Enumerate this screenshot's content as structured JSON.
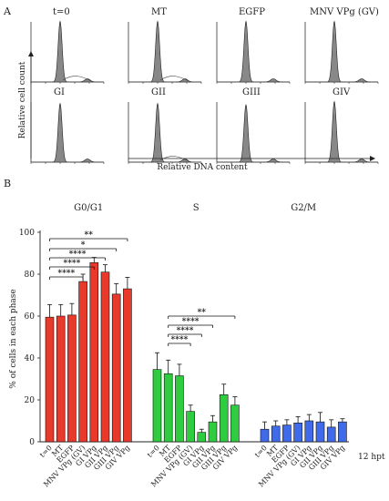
{
  "panel_a": {
    "label": "A",
    "titles": [
      "t=0",
      "MT",
      "EGFP",
      "MNV VPg (GV)",
      "GI",
      "GII",
      "GIII",
      "GIV"
    ],
    "ylabel": "Relative cell count",
    "xlabel": "Relative DNA content"
  },
  "panel_b": {
    "label": "B",
    "side_note": "12 hpt"
  },
  "chart_data": {
    "type": "bar",
    "ylabel": "% of cells in each phase",
    "ylim": [
      0,
      100
    ],
    "yticks": [
      0,
      20,
      40,
      60,
      80,
      100
    ],
    "categories": [
      "t=0",
      "MT",
      "EGFP",
      "MNV VPg (GV)",
      "GI VPg",
      "GII VPg",
      "GIII VPg",
      "GIV VPg"
    ],
    "groups": [
      {
        "name": "G0/G1",
        "color": "#e8392b",
        "values": [
          59.5,
          60,
          60.5,
          76.5,
          85.5,
          81,
          70.5,
          73
        ],
        "errors": [
          6,
          5.5,
          5.5,
          3.5,
          2.5,
          3.5,
          5,
          5.5
        ]
      },
      {
        "name": "S",
        "color": "#2ecc3e",
        "values": [
          34.5,
          32.5,
          31.5,
          14.5,
          4.5,
          9.5,
          22.5,
          17.5
        ],
        "errors": [
          8,
          6.5,
          5.5,
          3,
          1.5,
          3,
          5,
          4
        ]
      },
      {
        "name": "G2/M",
        "color": "#3f6bea",
        "values": [
          6,
          7.5,
          8,
          9,
          10,
          9.5,
          7,
          9.5
        ],
        "errors": [
          3.5,
          2.5,
          2.5,
          3,
          3,
          4.5,
          3.5,
          1.5
        ]
      }
    ],
    "significance": [
      {
        "group": "G0/G1",
        "from": "t=0",
        "to": "GIV VPg",
        "label": "**"
      },
      {
        "group": "G0/G1",
        "from": "t=0",
        "to": "GIII VPg",
        "label": "*"
      },
      {
        "group": "G0/G1",
        "from": "t=0",
        "to": "GII VPg",
        "label": "****"
      },
      {
        "group": "G0/G1",
        "from": "t=0",
        "to": "GI VPg",
        "label": "****"
      },
      {
        "group": "G0/G1",
        "from": "t=0",
        "to": "MNV VPg (GV)",
        "label": "****"
      },
      {
        "group": "S",
        "from": "MT",
        "to": "GIV VPg",
        "label": "**"
      },
      {
        "group": "S",
        "from": "MT",
        "to": "GII VPg",
        "label": "****"
      },
      {
        "group": "S",
        "from": "MT",
        "to": "GI VPg",
        "label": "****"
      },
      {
        "group": "S",
        "from": "MT",
        "to": "MNV VPg (GV)",
        "label": "****"
      }
    ]
  }
}
